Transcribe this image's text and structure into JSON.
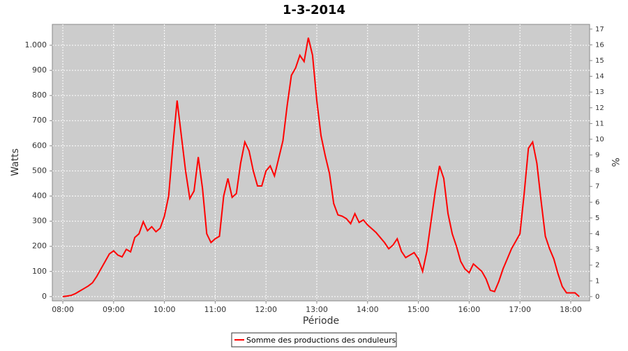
{
  "chart_data": {
    "type": "line",
    "title": "1-3-2014",
    "x_label": "Période",
    "y_label": "Watts",
    "y2_label": "%",
    "x": [
      480,
      485,
      490,
      495,
      500,
      505,
      510,
      515,
      520,
      525,
      530,
      535,
      540,
      545,
      550,
      555,
      560,
      565,
      570,
      575,
      580,
      585,
      590,
      595,
      600,
      605,
      610,
      615,
      620,
      625,
      630,
      635,
      640,
      645,
      650,
      655,
      660,
      665,
      670,
      675,
      680,
      685,
      690,
      695,
      700,
      705,
      710,
      715,
      720,
      725,
      730,
      735,
      740,
      745,
      750,
      755,
      760,
      765,
      770,
      775,
      780,
      785,
      790,
      795,
      800,
      805,
      810,
      815,
      820,
      825,
      830,
      835,
      840,
      845,
      850,
      855,
      860,
      865,
      870,
      875,
      880,
      885,
      890,
      895,
      900,
      905,
      910,
      915,
      920,
      925,
      930,
      935,
      940,
      945,
      950,
      955,
      960,
      965,
      970,
      975,
      980,
      985,
      990,
      995,
      1000,
      1005,
      1010,
      1015,
      1020,
      1025,
      1030,
      1035,
      1040,
      1045,
      1050,
      1055,
      1060,
      1065,
      1070,
      1075,
      1080,
      1085,
      1090
    ],
    "series": [
      {
        "name": "Somme des productions des onduleurs",
        "color": "#ff0000",
        "values": [
          0,
          2,
          5,
          12,
          22,
          32,
          42,
          55,
          80,
          110,
          140,
          170,
          182,
          165,
          158,
          188,
          178,
          235,
          250,
          298,
          262,
          278,
          258,
          272,
          320,
          400,
          600,
          780,
          640,
          500,
          390,
          420,
          555,
          430,
          250,
          215,
          230,
          240,
          400,
          470,
          395,
          410,
          530,
          615,
          580,
          500,
          440,
          440,
          500,
          520,
          480,
          550,
          620,
          760,
          880,
          910,
          960,
          935,
          1030,
          960,
          780,
          640,
          560,
          490,
          370,
          325,
          320,
          310,
          290,
          330,
          295,
          305,
          285,
          270,
          255,
          235,
          215,
          190,
          205,
          230,
          180,
          155,
          165,
          175,
          150,
          100,
          180,
          300,
          420,
          520,
          470,
          330,
          250,
          200,
          140,
          110,
          95,
          130,
          115,
          100,
          70,
          25,
          20,
          60,
          110,
          150,
          190,
          220,
          250,
          410,
          590,
          615,
          530,
          380,
          240,
          190,
          150,
          90,
          40,
          15,
          15,
          15,
          0
        ]
      }
    ],
    "xlim": [
      467.6,
      1102.3
    ],
    "xticks": [
      {
        "value": 480,
        "label": "08:00"
      },
      {
        "value": 540,
        "label": "09:00"
      },
      {
        "value": 600,
        "label": "10:00"
      },
      {
        "value": 660,
        "label": "11:00"
      },
      {
        "value": 720,
        "label": "12:00"
      },
      {
        "value": 780,
        "label": "13:00"
      },
      {
        "value": 840,
        "label": "14:00"
      },
      {
        "value": 900,
        "label": "15:00"
      },
      {
        "value": 960,
        "label": "16:00"
      },
      {
        "value": 1020,
        "label": "17:00"
      },
      {
        "value": 1080,
        "label": "18:00"
      }
    ],
    "ylim": [
      -17,
      1083
    ],
    "yticks": [
      0,
      100,
      200,
      300,
      400,
      500,
      600,
      700,
      800,
      900,
      {
        "value": 1000,
        "label": "1.000"
      }
    ],
    "y2lim": [
      -0.27,
      17.3
    ],
    "y2ticks": [
      0,
      1,
      2,
      3,
      4,
      5,
      6,
      7,
      8,
      9,
      10,
      11,
      12,
      13,
      14,
      15,
      16,
      17
    ],
    "grid": true,
    "background": "#cccccc",
    "legend": "bottom"
  }
}
